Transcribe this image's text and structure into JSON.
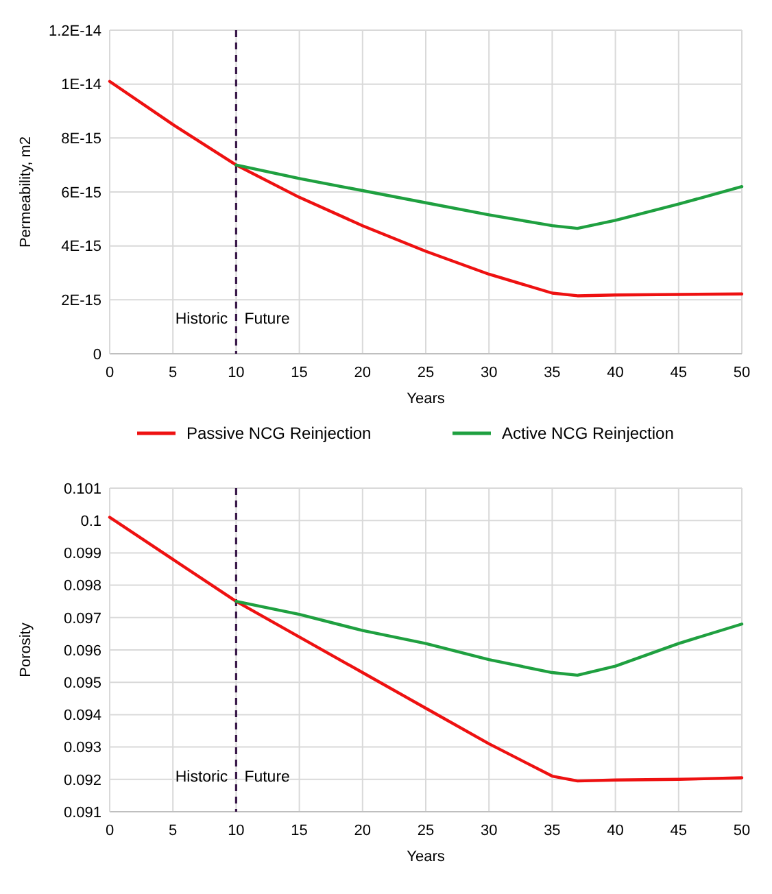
{
  "chart_data": [
    {
      "type": "line",
      "xlabel": "Years",
      "ylabel": "Permeability, m2",
      "x": [
        0,
        5,
        10,
        15,
        20,
        25,
        30,
        35,
        37,
        40,
        45,
        50
      ],
      "series": [
        {
          "name": "Passive NCG Reinjection",
          "color": "#ee1111",
          "values": [
            1.01e-14,
            8.5e-15,
            7e-15,
            5.8e-15,
            4.75e-15,
            3.8e-15,
            2.95e-15,
            2.25e-15,
            2.15e-15,
            2.18e-15,
            2.2e-15,
            2.22e-15
          ]
        },
        {
          "name": "Active NCG Reinjection",
          "color": "#1fa040",
          "values": [
            null,
            null,
            7e-15,
            6.5e-15,
            6.05e-15,
            5.6e-15,
            5.15e-15,
            4.75e-15,
            4.65e-15,
            4.95e-15,
            5.55e-15,
            6.2e-15
          ]
        }
      ],
      "xlim": [
        0,
        50
      ],
      "xticks": [
        0,
        5,
        10,
        15,
        20,
        25,
        30,
        35,
        40,
        45,
        50
      ],
      "ylim": [
        0,
        1.2e-14
      ],
      "yticks": [
        0,
        {
          "value": 2e-15,
          "label": "2E-15"
        },
        {
          "value": 4e-15,
          "label": "4E-15"
        },
        {
          "value": 6e-15,
          "label": "6E-15"
        },
        {
          "value": 8e-15,
          "label": "8E-15"
        },
        {
          "value": 1e-14,
          "label": "1E-14"
        },
        {
          "value": 1.2e-14,
          "label": "1.2E-14"
        }
      ],
      "ref_lines": [
        {
          "axis": "x",
          "value": 10,
          "color": "#3a1a4a",
          "line_style": "dashed"
        }
      ],
      "annotations": [
        "Historic",
        "Future"
      ],
      "grid": true,
      "legend": "bottom",
      "marker": "none",
      "line_style": "solid"
    },
    {
      "type": "line",
      "xlabel": "Years",
      "ylabel": "Porosity",
      "x": [
        0,
        5,
        10,
        15,
        20,
        25,
        30,
        35,
        37,
        40,
        45,
        50
      ],
      "series": [
        {
          "color": "#ee1111",
          "values": [
            0.1001,
            0.0988,
            0.0975,
            0.0964,
            0.0953,
            0.0942,
            0.0931,
            0.0921,
            0.09195,
            0.09198,
            0.092,
            0.09205
          ]
        },
        {
          "color": "#1fa040",
          "values": [
            null,
            null,
            0.0975,
            0.0971,
            0.0966,
            0.0962,
            0.0957,
            0.0953,
            0.09522,
            0.0955,
            0.0962,
            0.0968
          ]
        }
      ],
      "xlim": [
        0,
        50
      ],
      "xticks": [
        0,
        5,
        10,
        15,
        20,
        25,
        30,
        35,
        40,
        45,
        50
      ],
      "ylim": [
        0.091,
        0.101
      ],
      "yticks": [
        0.091,
        0.092,
        0.093,
        0.094,
        0.095,
        0.096,
        0.097,
        0.098,
        0.099,
        {
          "value": 0.1,
          "label": "0.1"
        },
        0.101
      ],
      "ref_lines": [
        {
          "axis": "x",
          "value": 10,
          "color": "#3a1a4a",
          "line_style": "dashed"
        }
      ],
      "annotations": [
        "Historic",
        "Future"
      ],
      "grid": true,
      "legend": false,
      "marker": "none",
      "line_style": "solid"
    }
  ]
}
